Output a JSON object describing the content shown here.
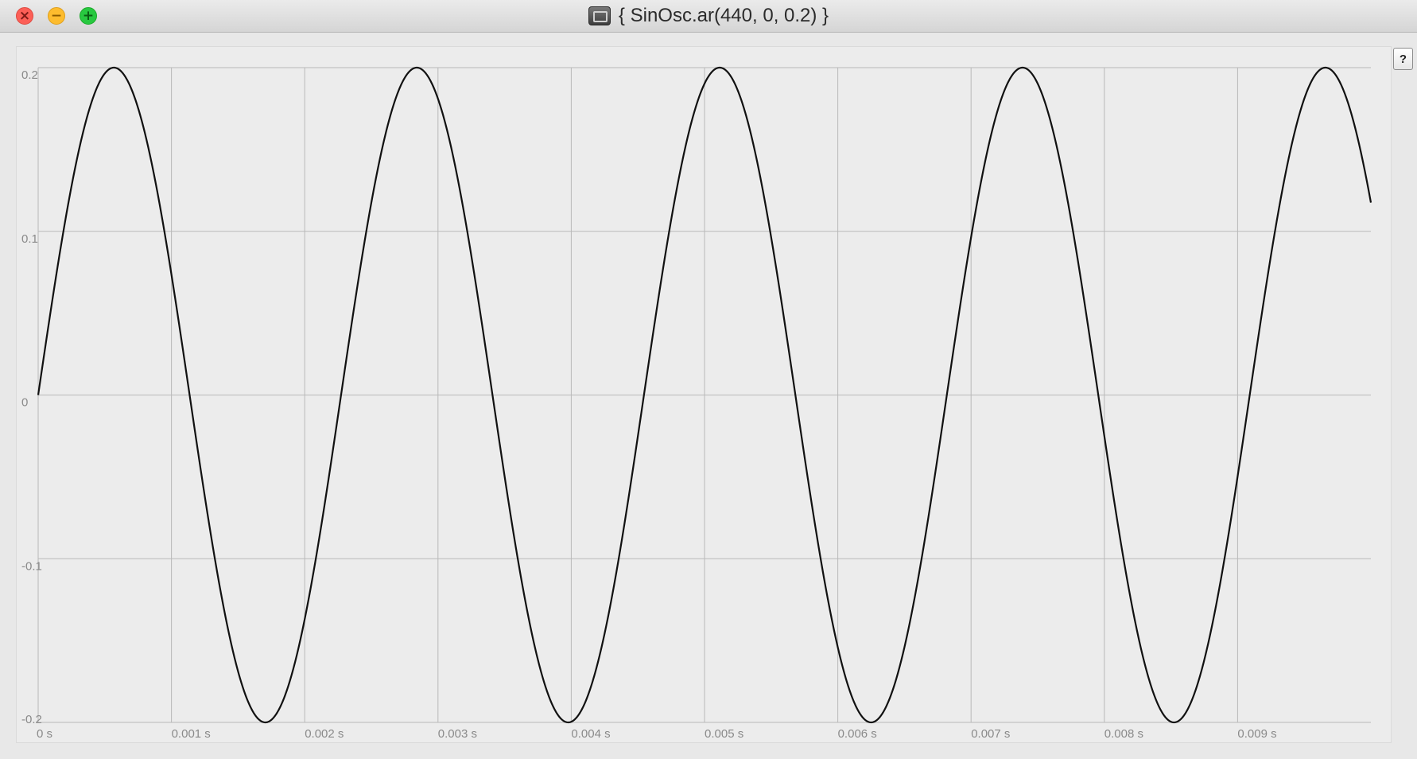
{
  "window": {
    "title": "{ SinOsc.ar(440, 0, 0.2) }",
    "buttons": {
      "close_glyph": "×",
      "minimize_glyph": "−",
      "zoom_glyph": "+"
    },
    "title_icon": "document-proxy-icon"
  },
  "help_button": {
    "label": "?"
  },
  "colors": {
    "close": "#fc5f57",
    "minimize": "#fdbc2e",
    "zoom": "#28c840",
    "plot_background": "#ececec",
    "grid": "#b9b9b9",
    "trace": "#111111"
  },
  "chart_data": {
    "type": "line",
    "title": "",
    "xlabel": "",
    "ylabel": "",
    "frequency_hz": 440,
    "phase": 0,
    "amplitude": 0.2,
    "xlim": [
      0,
      0.01
    ],
    "ylim": [
      -0.2,
      0.2
    ],
    "grid": true,
    "x_ticks": [
      0,
      0.001,
      0.002,
      0.003,
      0.004,
      0.005,
      0.006,
      0.007,
      0.008,
      0.009
    ],
    "x_tick_labels": [
      "0 s",
      "0.001 s",
      "0.002 s",
      "0.003 s",
      "0.004 s",
      "0.005 s",
      "0.006 s",
      "0.007 s",
      "0.008 s",
      "0.009 s"
    ],
    "y_ticks": [
      0.2,
      0.1,
      0,
      -0.1,
      -0.2
    ],
    "y_tick_labels": [
      "0.2",
      "0.1",
      "0",
      "-0.1",
      "-0.2"
    ],
    "series": [
      {
        "color": "#111111"
      }
    ]
  }
}
